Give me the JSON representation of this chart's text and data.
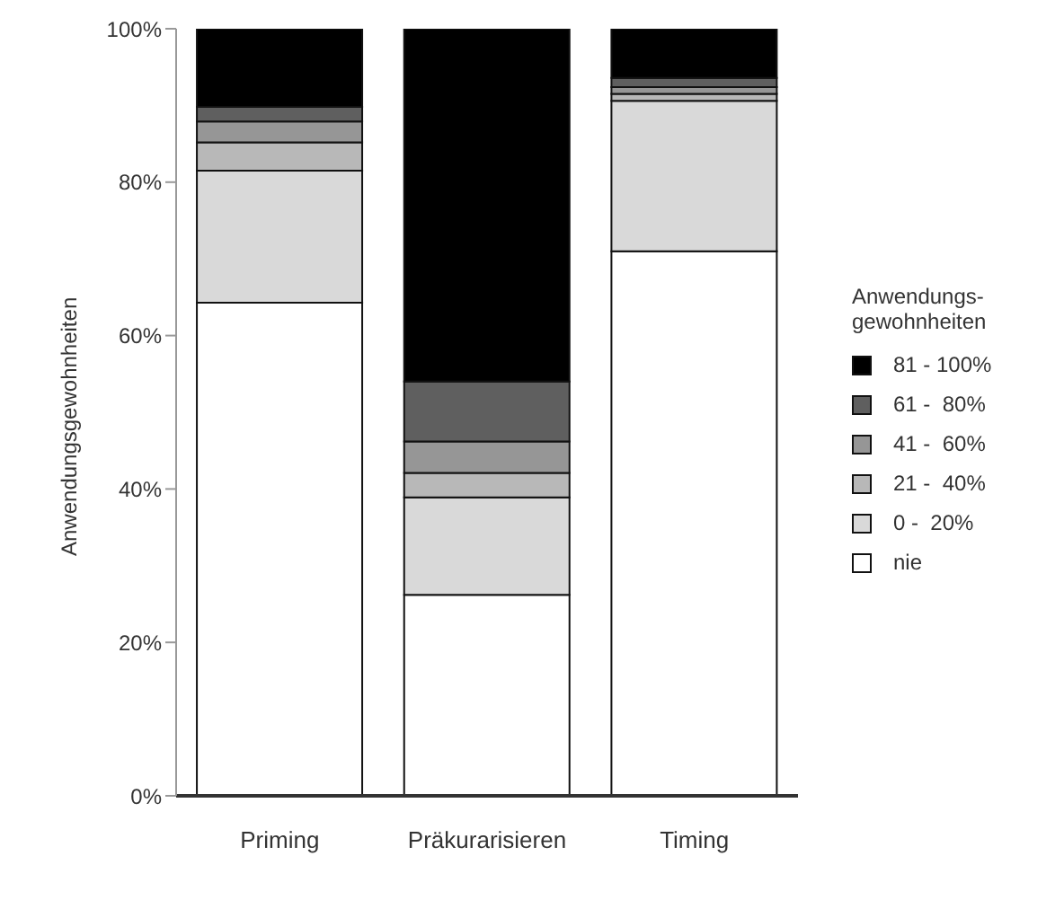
{
  "chart_data": {
    "type": "bar",
    "stacked": true,
    "ylabel": "Anwendungsgewohnheiten",
    "legend_title": "Anwendungs-\ngewohnheiten",
    "legend": "right",
    "categories": [
      "Priming",
      "Präkurarisieren",
      "Timing"
    ],
    "ylim": [
      0,
      100
    ],
    "yticks": [
      {
        "value": 0,
        "label": "0%"
      },
      {
        "value": 20,
        "label": "20%"
      },
      {
        "value": 40,
        "label": "40%"
      },
      {
        "value": 60,
        "label": "60%"
      },
      {
        "value": 80,
        "label": "80%"
      },
      {
        "value": 100,
        "label": "100%"
      }
    ],
    "grid": false,
    "series": [
      {
        "name": "nie",
        "color": "#ffffff",
        "values": [
          64.3,
          26.2,
          71.0
        ]
      },
      {
        "name": "0 -  20%",
        "color": "#d9d9d9",
        "values": [
          17.2,
          12.7,
          19.6
        ]
      },
      {
        "name": "21 -  40%",
        "color": "#b8b8b8",
        "values": [
          3.7,
          3.2,
          0.9
        ]
      },
      {
        "name": "41 -  60%",
        "color": "#969696",
        "values": [
          2.7,
          4.1,
          0.9
        ]
      },
      {
        "name": "61 -  80%",
        "color": "#5f5f5f",
        "values": [
          1.9,
          7.8,
          1.2
        ]
      },
      {
        "name": "81 - 100%",
        "color": "#000000",
        "values": [
          10.2,
          46.0,
          6.4
        ]
      }
    ]
  }
}
